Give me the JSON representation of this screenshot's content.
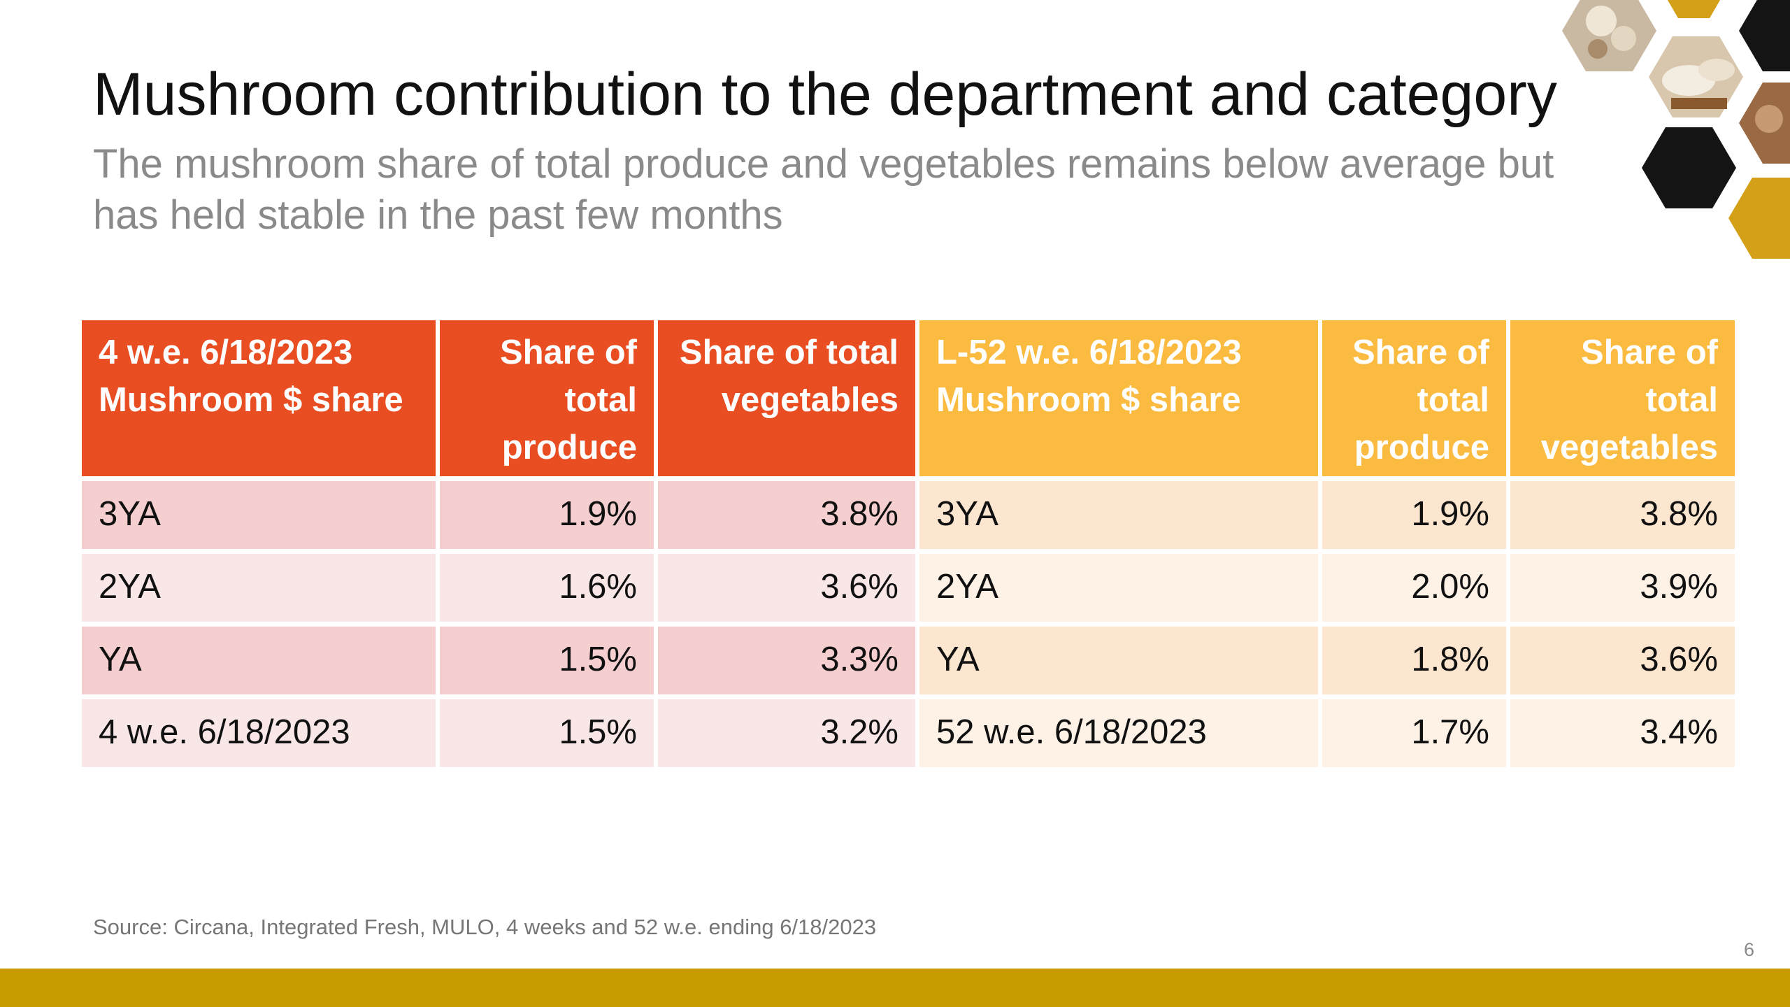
{
  "slide": {
    "title": "Mushroom contribution to the department and category",
    "subtitle": "The mushroom share of total produce and vegetables remains below average but has held stable in the past few months",
    "source": "Source: Circana, Integrated Fresh, MULO, 4 weeks and 52 w.e. ending 6/18/2023",
    "page_number": "6"
  },
  "table": {
    "headers": [
      "4 w.e. 6/18/2023 Mushroom $ share",
      "Share of total produce",
      "Share of total vegetables",
      "L-52 w.e. 6/18/2023 Mushroom $ share",
      "Share of total produce",
      "Share of total vegetables"
    ],
    "rows": [
      [
        "3YA",
        "1.9%",
        "3.8%",
        "3YA",
        "1.9%",
        "3.8%"
      ],
      [
        "2YA",
        "1.6%",
        "3.6%",
        "2YA",
        "2.0%",
        "3.9%"
      ],
      [
        "YA",
        "1.5%",
        "3.3%",
        "YA",
        "1.8%",
        "3.6%"
      ],
      [
        "4 w.e. 6/18/2023",
        "1.5%",
        "3.2%",
        "52 w.e. 6/18/2023",
        "1.7%",
        "3.4%"
      ]
    ]
  },
  "colors": {
    "header_left": "#e84e22",
    "header_right": "#fbba40",
    "row_left_dark": "#f5cfcf",
    "row_left_light": "#f9e6e6",
    "row_right_dark": "#fde6cf",
    "row_right_light": "#fef2e7",
    "bottom_bar": "#c89b00",
    "hex_gold": "#d4a017",
    "hex_black": "#141414"
  },
  "icons": {
    "decoration": "mushroom-honeycomb-image"
  }
}
